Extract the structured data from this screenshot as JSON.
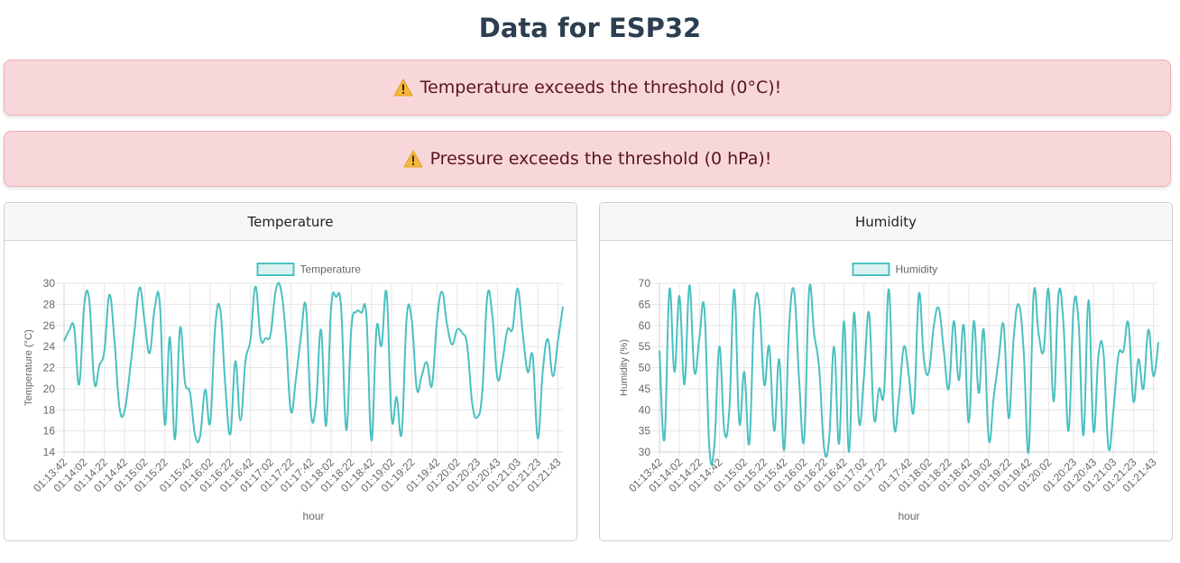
{
  "page": {
    "title": "Data for ESP32"
  },
  "alerts": [
    {
      "text": "Temperature exceeds the threshold (0°C)!",
      "icon": "warning-icon"
    },
    {
      "text": "Pressure exceeds the threshold (0 hPa)!",
      "icon": "warning-icon"
    }
  ],
  "colors": {
    "line": "#4bc0c0",
    "legend_fill": "#dbf2f2",
    "alert_bg": "#f8d7da",
    "alert_text": "#58151c",
    "title": "#2c3e50"
  },
  "charts": {
    "temperature": {
      "card_title": "Temperature",
      "chart_data": {
        "type": "line",
        "legend": "Temperature",
        "legend_position": "top",
        "xlabel": "hour",
        "ylabel": "Temperature (°C)",
        "ylim": [
          14,
          30
        ],
        "yticks": [
          14,
          16,
          18,
          20,
          22,
          24,
          26,
          28,
          30
        ],
        "grid": true,
        "xtick_labels": [
          "01:13:42",
          "01:14:02",
          "01:14:22",
          "01:14:42",
          "01:15:02",
          "01:15:22",
          "01:15:42",
          "01:16:02",
          "01:16:22",
          "01:16:42",
          "01:17:02",
          "01:17:22",
          "01:17:42",
          "01:18:02",
          "01:18:22",
          "01:18:42",
          "01:19:02",
          "01:19:22",
          "01:19:42",
          "01:20:02",
          "01:20:23",
          "01:20:43",
          "01:21:03",
          "01:21:23",
          "01:21:43"
        ],
        "values": [
          24.5,
          25.5,
          25.8,
          20.4,
          27.9,
          28.4,
          20.6,
          22.2,
          23.6,
          28.9,
          24.6,
          18.2,
          17.9,
          21.4,
          25.6,
          29.6,
          26.3,
          23.4,
          27.7,
          28.1,
          16.6,
          24.9,
          15.2,
          25.7,
          20.6,
          19.6,
          15.6,
          15.5,
          19.9,
          16.8,
          25.9,
          27.5,
          20.3,
          15.7,
          22.6,
          17.0,
          22.6,
          24.7,
          29.7,
          24.8,
          24.8,
          25.2,
          29.3,
          29.5,
          25.1,
          17.9,
          20.9,
          24.9,
          27.8,
          17.7,
          18.6,
          25.6,
          16.5,
          27.7,
          28.7,
          27.6,
          16.1,
          25.7,
          27.3,
          27.2,
          26.9,
          15.1,
          25.7,
          24.1,
          29.1,
          17.2,
          19.2,
          15.8,
          26.8,
          26.5,
          20.0,
          21.3,
          22.5,
          20.3,
          26.4,
          29.2,
          26.1,
          24.2,
          25.6,
          25.3,
          24.1,
          18.6,
          17.3,
          19.7,
          28.8,
          26.9,
          21.0,
          22.7,
          25.6,
          25.7,
          29.5,
          25.4,
          21.6,
          23.1,
          15.3,
          21.7,
          24.7,
          21.2,
          24.5,
          27.8
        ]
      }
    },
    "humidity": {
      "card_title": "Humidity",
      "chart_data": {
        "type": "line",
        "legend": "Humidity",
        "legend_position": "top",
        "xlabel": "hour",
        "ylabel": "Humidity (%)",
        "ylim": [
          30,
          70
        ],
        "yticks": [
          30,
          35,
          40,
          45,
          50,
          55,
          60,
          65,
          70
        ],
        "grid": true,
        "xtick_labels": [
          "01:13:42",
          "01:14:02",
          "01:14:22",
          "01:14:42",
          "01:15:02",
          "01:15:22",
          "01:15:42",
          "01:16:02",
          "01:16:22",
          "01:16:42",
          "01:17:02",
          "01:17:22",
          "01:17:42",
          "01:18:02",
          "01:18:22",
          "01:18:42",
          "01:19:02",
          "01:19:22",
          "01:19:42",
          "01:20:02",
          "01:20:23",
          "01:20:43",
          "01:21:03",
          "01:21:23",
          "01:21:43"
        ],
        "values": [
          54,
          33,
          68.5,
          49,
          67,
          46,
          69.5,
          49,
          57,
          64,
          31,
          31.5,
          55,
          35,
          40,
          68.5,
          37,
          49,
          32,
          63,
          65,
          46,
          55,
          35,
          52,
          30.5,
          60,
          68,
          47,
          33,
          68.5,
          58,
          50,
          31,
          33,
          55,
          32,
          61,
          30,
          63,
          37,
          48,
          63,
          38,
          45,
          44,
          68.5,
          36.5,
          43,
          55,
          48,
          40,
          67.5,
          52,
          49,
          60,
          64,
          54,
          45,
          61,
          47,
          60,
          37,
          61,
          44,
          59,
          33,
          43,
          52,
          60,
          38,
          57,
          65,
          54,
          30,
          67.5,
          58,
          54,
          68.5,
          42,
          67.5,
          60,
          35,
          64,
          61,
          34,
          66,
          35,
          53,
          53.5,
          31,
          40,
          53,
          54,
          60.5,
          42,
          52,
          45,
          59,
          48,
          56
        ]
      }
    }
  }
}
